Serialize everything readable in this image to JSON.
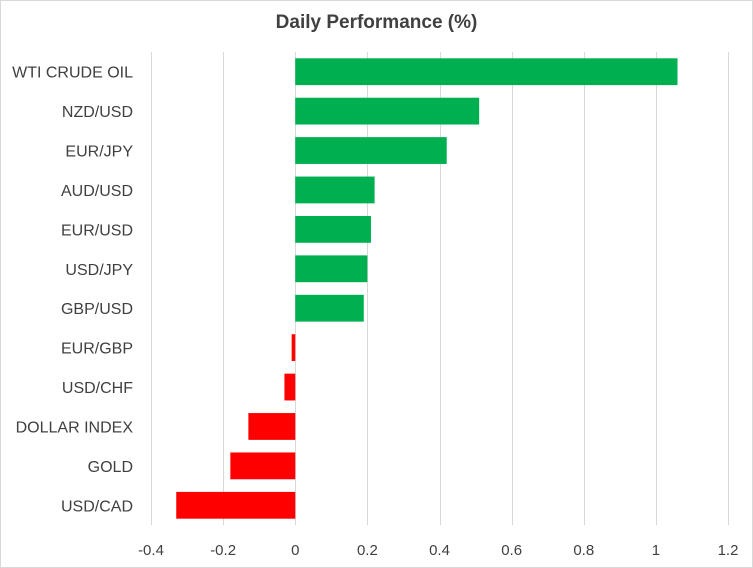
{
  "chart_data": {
    "type": "bar",
    "orientation": "horizontal",
    "title": "Daily Performance  (%)",
    "xlabel": "",
    "ylabel": "",
    "xlim": [
      -0.4,
      1.2
    ],
    "x_ticks": [
      -0.4,
      -0.2,
      0,
      0.2,
      0.4,
      0.6,
      0.8,
      1,
      1.2
    ],
    "x_tick_labels": [
      "-0.4",
      "-0.2",
      "0",
      "0.2",
      "0.4",
      "0.6",
      "0.8",
      "1",
      "1.2"
    ],
    "grid": "vertical",
    "legend": "none",
    "categories": [
      "WTI CRUDE OIL",
      "NZD/USD",
      "EUR/JPY",
      "AUD/USD",
      "EUR/USD",
      "USD/JPY",
      "GBP/USD",
      "EUR/GBP",
      "USD/CHF",
      "DOLLAR INDEX",
      "GOLD",
      "USD/CAD"
    ],
    "values": [
      1.06,
      0.51,
      0.42,
      0.22,
      0.21,
      0.2,
      0.19,
      -0.01,
      -0.03,
      -0.13,
      -0.18,
      -0.33
    ],
    "colors": {
      "positive": "#00b050",
      "negative": "#ff0000",
      "grid": "#d9d9d9",
      "text": "#404040"
    }
  }
}
